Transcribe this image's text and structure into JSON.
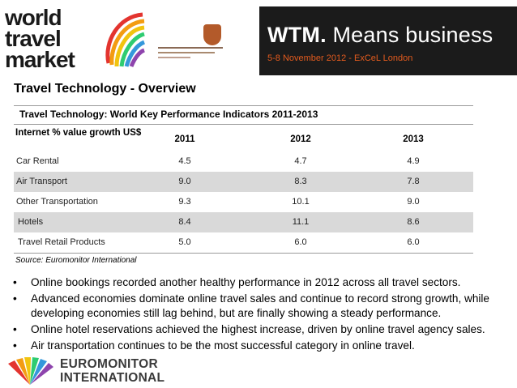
{
  "banner": {
    "logo_line1": "world",
    "logo_line2": "travel",
    "logo_line3": "market",
    "wtm_bold": "WTM.",
    "wtm_rest": " Means business",
    "date": "5-8 November 2012 - ExCeL London",
    "accent_color": "#e35b1e"
  },
  "title": "Travel Technology - Overview",
  "table": {
    "title": "Travel Technology: World Key Performance Indicators 2011-2013",
    "header_label": "Internet % value growth US$",
    "years": [
      "2011",
      "2012",
      "2013"
    ],
    "rows": [
      {
        "label": "Car Rental",
        "values": [
          "4.5",
          "4.7",
          "4.9"
        ]
      },
      {
        "label": "Air Transport",
        "values": [
          "9.0",
          "8.3",
          "7.8"
        ]
      },
      {
        "label": "Other Transportation",
        "values": [
          "9.3",
          "10.1",
          "9.0"
        ]
      },
      {
        "label": "Hotels",
        "values": [
          "8.4",
          "11.1",
          "8.6"
        ]
      },
      {
        "label": "Travel Retail Products",
        "values": [
          "5.0",
          "6.0",
          "6.0"
        ]
      }
    ],
    "source": "Source: Euromonitor International"
  },
  "bullets": [
    "Online bookings recorded another healthy performance in 2012 across all travel sectors.",
    "Advanced economies dominate online travel sales and continue to record strong growth, while developing economies still lag behind, but are finally showing a steady performance.",
    "Online hotel reservations achieved the highest increase, driven by online travel agency sales.",
    "Air transportation continues to be the most successful category in online travel."
  ],
  "bullet_marker": "•",
  "footer": {
    "logo_line1": "EUROMONITOR",
    "logo_line2": "INTERNATIONAL"
  }
}
